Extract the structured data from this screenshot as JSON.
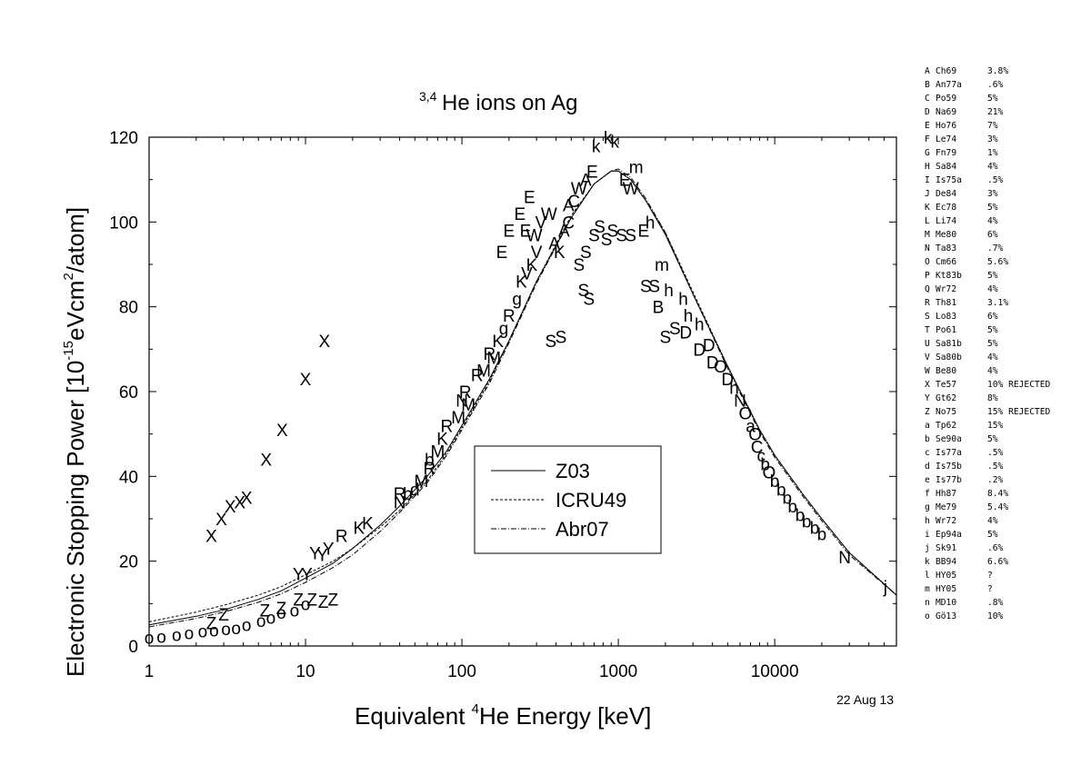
{
  "chart_data": {
    "type": "scatter",
    "title_sup": "3,4",
    "title": "He ions on Ag",
    "xlabel_pre": "Equivalent ",
    "xlabel_sup": "4",
    "xlabel_post": "He Energy [keV]",
    "ylabel_pre": "Electronic Stopping Power [10",
    "ylabel_sup1": "-15",
    "ylabel_mid": "eVcm",
    "ylabel_sup2": "2",
    "ylabel_post": "/atom]",
    "x_scale": "log",
    "xlim": [
      1,
      60000
    ],
    "ylim": [
      0,
      120
    ],
    "x_ticks": [
      1,
      10,
      100,
      1000,
      10000
    ],
    "x_tick_labels": [
      "1",
      "10",
      "100",
      "1000",
      "10000"
    ],
    "y_ticks": [
      0,
      20,
      40,
      60,
      80,
      100,
      120
    ],
    "y_tick_labels": [
      "0",
      "20",
      "40",
      "60",
      "80",
      "100",
      "120"
    ],
    "grid": false,
    "legend_position": "center",
    "legend": [
      {
        "label": "Z03",
        "style": "solid"
      },
      {
        "label": "ICRU49",
        "style": "dashed"
      },
      {
        "label": "Abr07",
        "style": "dashdot"
      }
    ],
    "curves": [
      {
        "name": "Z03",
        "style": "solid",
        "points": [
          [
            1,
            5
          ],
          [
            2,
            7
          ],
          [
            3,
            8.5
          ],
          [
            5,
            11
          ],
          [
            7,
            13
          ],
          [
            10,
            16
          ],
          [
            15,
            19.5
          ],
          [
            20,
            23
          ],
          [
            30,
            28.5
          ],
          [
            40,
            33
          ],
          [
            60,
            40
          ],
          [
            80,
            46
          ],
          [
            100,
            52
          ],
          [
            150,
            63
          ],
          [
            200,
            72
          ],
          [
            300,
            86
          ],
          [
            500,
            101
          ],
          [
            700,
            109
          ],
          [
            900,
            112
          ],
          [
            1000,
            112
          ],
          [
            1200,
            110
          ],
          [
            1500,
            105
          ],
          [
            2000,
            97
          ],
          [
            3000,
            83
          ],
          [
            5000,
            66
          ],
          [
            8000,
            51
          ],
          [
            10000,
            45
          ],
          [
            15000,
            36
          ],
          [
            20000,
            30
          ],
          [
            30000,
            22
          ],
          [
            60000,
            12
          ]
        ]
      },
      {
        "name": "ICRU49",
        "style": "dashed",
        "points": [
          [
            1,
            5.7
          ],
          [
            2,
            8
          ],
          [
            3,
            9.6
          ],
          [
            5,
            12
          ],
          [
            7,
            14
          ],
          [
            10,
            16.8
          ],
          [
            15,
            20
          ],
          [
            20,
            23
          ],
          [
            30,
            28
          ],
          [
            40,
            32
          ],
          [
            60,
            39
          ],
          [
            80,
            45.5
          ],
          [
            100,
            51.5
          ],
          [
            150,
            62.5
          ],
          [
            200,
            72
          ],
          [
            300,
            86
          ],
          [
            500,
            101.5
          ],
          [
            700,
            109
          ],
          [
            900,
            112
          ],
          [
            1000,
            112
          ],
          [
            1200,
            110
          ],
          [
            1500,
            105
          ],
          [
            2000,
            97.5
          ],
          [
            3000,
            83.5
          ],
          [
            5000,
            66
          ],
          [
            8000,
            51
          ],
          [
            10000,
            45
          ],
          [
            15000,
            36
          ],
          [
            20000,
            30
          ],
          [
            30000,
            22
          ],
          [
            60000,
            12
          ]
        ]
      },
      {
        "name": "Abr07",
        "style": "dashdot",
        "points": [
          [
            1,
            4.5
          ],
          [
            2,
            6.5
          ],
          [
            3,
            8
          ],
          [
            5,
            10.3
          ],
          [
            7,
            12.3
          ],
          [
            10,
            15
          ],
          [
            15,
            18.5
          ],
          [
            20,
            21.5
          ],
          [
            30,
            27
          ],
          [
            40,
            31.5
          ],
          [
            60,
            38.5
          ],
          [
            80,
            45
          ],
          [
            100,
            51
          ],
          [
            150,
            62
          ],
          [
            200,
            71.5
          ],
          [
            300,
            85.5
          ],
          [
            500,
            101
          ],
          [
            700,
            109
          ],
          [
            900,
            112
          ],
          [
            1000,
            112.5
          ],
          [
            1200,
            110.5
          ],
          [
            1500,
            105.5
          ],
          [
            2000,
            97.5
          ],
          [
            3000,
            83
          ],
          [
            5000,
            65.5
          ],
          [
            8000,
            50.5
          ],
          [
            10000,
            44.5
          ],
          [
            15000,
            35.5
          ],
          [
            20000,
            29.5
          ],
          [
            30000,
            21.5
          ],
          [
            60000,
            12
          ]
        ]
      }
    ],
    "points": [
      {
        "s": "X",
        "x": 2.5,
        "y": 26
      },
      {
        "s": "X",
        "x": 2.9,
        "y": 30
      },
      {
        "s": "X",
        "x": 3.3,
        "y": 33
      },
      {
        "s": "X",
        "x": 3.8,
        "y": 34
      },
      {
        "s": "X",
        "x": 4.2,
        "y": 35
      },
      {
        "s": "X",
        "x": 5.6,
        "y": 44
      },
      {
        "s": "X",
        "x": 7.1,
        "y": 51
      },
      {
        "s": "X",
        "x": 10,
        "y": 63
      },
      {
        "s": "X",
        "x": 13.2,
        "y": 72
      },
      {
        "s": "Y",
        "x": 9,
        "y": 17
      },
      {
        "s": "Y",
        "x": 10.2,
        "y": 17
      },
      {
        "s": "Y",
        "x": 11.5,
        "y": 22
      },
      {
        "s": "Y",
        "x": 12.8,
        "y": 21.5
      },
      {
        "s": "Y",
        "x": 14,
        "y": 23
      },
      {
        "s": "Z",
        "x": 2.5,
        "y": 5.5
      },
      {
        "s": "Z",
        "x": 3,
        "y": 7.5
      },
      {
        "s": "Z",
        "x": 5.5,
        "y": 8.5
      },
      {
        "s": "Z",
        "x": 7,
        "y": 9
      },
      {
        "s": "Z",
        "x": 9,
        "y": 11
      },
      {
        "s": "Z",
        "x": 11,
        "y": 11
      },
      {
        "s": "Z",
        "x": 13,
        "y": 10.5
      },
      {
        "s": "Z",
        "x": 15,
        "y": 11
      },
      {
        "s": "o",
        "x": 1,
        "y": 2
      },
      {
        "s": "o",
        "x": 1.2,
        "y": 2.3
      },
      {
        "s": "o",
        "x": 1.5,
        "y": 2.7
      },
      {
        "s": "o",
        "x": 1.8,
        "y": 3.1
      },
      {
        "s": "o",
        "x": 2.2,
        "y": 3.5
      },
      {
        "s": "o",
        "x": 2.6,
        "y": 3.8
      },
      {
        "s": "o",
        "x": 3.1,
        "y": 4.1
      },
      {
        "s": "o",
        "x": 3.6,
        "y": 4.3
      },
      {
        "s": "o",
        "x": 4.2,
        "y": 5
      },
      {
        "s": "o",
        "x": 5.2,
        "y": 6
      },
      {
        "s": "o",
        "x": 6,
        "y": 6.8
      },
      {
        "s": "o",
        "x": 7,
        "y": 7.9
      },
      {
        "s": "o",
        "x": 8.5,
        "y": 8.5
      },
      {
        "s": "o",
        "x": 10,
        "y": 10
      },
      {
        "s": "R",
        "x": 17,
        "y": 26
      },
      {
        "s": "K",
        "x": 22,
        "y": 28
      },
      {
        "s": "K",
        "x": 25,
        "y": 29
      },
      {
        "s": "R",
        "x": 40,
        "y": 36
      },
      {
        "s": "N",
        "x": 40,
        "y": 34
      },
      {
        "s": "b",
        "x": 45,
        "y": 36
      },
      {
        "s": "d",
        "x": 50,
        "y": 37
      },
      {
        "s": "M",
        "x": 55,
        "y": 39
      },
      {
        "s": "R",
        "x": 62,
        "y": 42
      },
      {
        "s": "b",
        "x": 62,
        "y": 44
      },
      {
        "s": "M",
        "x": 70,
        "y": 46
      },
      {
        "s": "K",
        "x": 75,
        "y": 49
      },
      {
        "s": "R",
        "x": 80,
        "y": 52
      },
      {
        "s": "M",
        "x": 95,
        "y": 54
      },
      {
        "s": "N",
        "x": 100,
        "y": 58
      },
      {
        "s": "R",
        "x": 105,
        "y": 60
      },
      {
        "s": "M",
        "x": 110,
        "y": 57
      },
      {
        "s": "R",
        "x": 125,
        "y": 64
      },
      {
        "s": "M",
        "x": 138,
        "y": 65
      },
      {
        "s": "R",
        "x": 150,
        "y": 69
      },
      {
        "s": "M",
        "x": 160,
        "y": 68
      },
      {
        "s": "K",
        "x": 170,
        "y": 72
      },
      {
        "s": "g",
        "x": 185,
        "y": 75
      },
      {
        "s": "R",
        "x": 200,
        "y": 78
      },
      {
        "s": "g",
        "x": 225,
        "y": 82
      },
      {
        "s": "K",
        "x": 240,
        "y": 86
      },
      {
        "s": "V",
        "x": 260,
        "y": 88
      },
      {
        "s": "K",
        "x": 280,
        "y": 90
      },
      {
        "s": "V",
        "x": 300,
        "y": 93
      },
      {
        "s": "E",
        "x": 180,
        "y": 93
      },
      {
        "s": "E",
        "x": 200,
        "y": 98
      },
      {
        "s": "E",
        "x": 235,
        "y": 102
      },
      {
        "s": "E",
        "x": 255,
        "y": 98
      },
      {
        "s": "E",
        "x": 270,
        "y": 106
      },
      {
        "s": "W",
        "x": 290,
        "y": 97
      },
      {
        "s": "V",
        "x": 320,
        "y": 100
      },
      {
        "s": "W",
        "x": 360,
        "y": 102
      },
      {
        "s": "A",
        "x": 390,
        "y": 95
      },
      {
        "s": "K",
        "x": 420,
        "y": 93
      },
      {
        "s": "A",
        "x": 450,
        "y": 98
      },
      {
        "s": "C",
        "x": 480,
        "y": 100
      },
      {
        "s": "S",
        "x": 370,
        "y": 72
      },
      {
        "s": "S",
        "x": 430,
        "y": 73
      },
      {
        "s": "S",
        "x": 600,
        "y": 84
      },
      {
        "s": "S",
        "x": 650,
        "y": 82
      },
      {
        "s": "S",
        "x": 560,
        "y": 90
      },
      {
        "s": "S",
        "x": 620,
        "y": 93
      },
      {
        "s": "A",
        "x": 480,
        "y": 104
      },
      {
        "s": "C",
        "x": 520,
        "y": 105
      },
      {
        "s": "W",
        "x": 560,
        "y": 108
      },
      {
        "s": "A",
        "x": 620,
        "y": 110
      },
      {
        "s": "E",
        "x": 680,
        "y": 112
      },
      {
        "s": "k",
        "x": 720,
        "y": 118
      },
      {
        "s": "S",
        "x": 700,
        "y": 97
      },
      {
        "s": "S",
        "x": 760,
        "y": 99
      },
      {
        "s": "S",
        "x": 840,
        "y": 96
      },
      {
        "s": "S",
        "x": 920,
        "y": 98
      },
      {
        "s": "k",
        "x": 860,
        "y": 120
      },
      {
        "s": "k",
        "x": 950,
        "y": 119
      },
      {
        "s": "m",
        "x": 1300,
        "y": 113
      },
      {
        "s": "E",
        "x": 1100,
        "y": 110
      },
      {
        "s": "W",
        "x": 1200,
        "y": 108
      },
      {
        "s": "S",
        "x": 1050,
        "y": 97
      },
      {
        "s": "S",
        "x": 1200,
        "y": 97
      },
      {
        "s": "E",
        "x": 1450,
        "y": 98
      },
      {
        "s": "h",
        "x": 1600,
        "y": 100
      },
      {
        "s": "S",
        "x": 1500,
        "y": 85
      },
      {
        "s": "S",
        "x": 1700,
        "y": 85
      },
      {
        "s": "m",
        "x": 1900,
        "y": 90
      },
      {
        "s": "h",
        "x": 2100,
        "y": 84
      },
      {
        "s": "B",
        "x": 1800,
        "y": 80
      },
      {
        "s": "h",
        "x": 2600,
        "y": 82
      },
      {
        "s": "h",
        "x": 2800,
        "y": 78
      },
      {
        "s": "S",
        "x": 2000,
        "y": 73
      },
      {
        "s": "S",
        "x": 2300,
        "y": 75
      },
      {
        "s": "D",
        "x": 2700,
        "y": 74
      },
      {
        "s": "h",
        "x": 3300,
        "y": 76
      },
      {
        "s": "D",
        "x": 3300,
        "y": 70
      },
      {
        "s": "D",
        "x": 3800,
        "y": 71
      },
      {
        "s": "D",
        "x": 4000,
        "y": 67
      },
      {
        "s": "O",
        "x": 4500,
        "y": 66
      },
      {
        "s": "D",
        "x": 5000,
        "y": 63
      },
      {
        "s": "h",
        "x": 5500,
        "y": 61
      },
      {
        "s": "N",
        "x": 6000,
        "y": 58
      },
      {
        "s": "O",
        "x": 6500,
        "y": 55
      },
      {
        "s": "a",
        "x": 7000,
        "y": 52
      },
      {
        "s": "O",
        "x": 7500,
        "y": 50
      },
      {
        "s": "C",
        "x": 7700,
        "y": 47
      },
      {
        "s": "c",
        "x": 8200,
        "y": 45
      },
      {
        "s": "b",
        "x": 8700,
        "y": 43
      },
      {
        "s": "O",
        "x": 9200,
        "y": 41
      },
      {
        "s": "b",
        "x": 10000,
        "y": 39
      },
      {
        "s": "b",
        "x": 11000,
        "y": 37
      },
      {
        "s": "b",
        "x": 12000,
        "y": 35
      },
      {
        "s": "b",
        "x": 13000,
        "y": 33
      },
      {
        "s": "b",
        "x": 14500,
        "y": 31
      },
      {
        "s": "b",
        "x": 16000,
        "y": 29.5
      },
      {
        "s": "b",
        "x": 18000,
        "y": 28
      },
      {
        "s": "b",
        "x": 20000,
        "y": 26.5
      },
      {
        "s": "N",
        "x": 28000,
        "y": 21
      },
      {
        "s": "j",
        "x": 51000,
        "y": 14
      }
    ]
  },
  "date_stamp": "22 Aug 13",
  "references": [
    {
      "code": "A",
      "name": "Ch69",
      "unc": "3.8%"
    },
    {
      "code": "B",
      "name": "An77a",
      "unc": ".6%"
    },
    {
      "code": "C",
      "name": "Po59",
      "unc": "5%"
    },
    {
      "code": "D",
      "name": "Na69",
      "unc": "21%"
    },
    {
      "code": "E",
      "name": "Ho76",
      "unc": "7%"
    },
    {
      "code": "F",
      "name": "Le74",
      "unc": "3%"
    },
    {
      "code": "G",
      "name": "Fn79",
      "unc": "1%"
    },
    {
      "code": "H",
      "name": "Sa84",
      "unc": "4%"
    },
    {
      "code": "I",
      "name": "Is75a",
      "unc": ".5%"
    },
    {
      "code": "J",
      "name": "De84",
      "unc": "3%"
    },
    {
      "code": "K",
      "name": "Ec78",
      "unc": "5%"
    },
    {
      "code": "L",
      "name": "Li74",
      "unc": "4%"
    },
    {
      "code": "M",
      "name": "Me80",
      "unc": "6%"
    },
    {
      "code": "N",
      "name": "Ta83",
      "unc": ".7%"
    },
    {
      "code": "O",
      "name": "Cm66",
      "unc": "5.6%"
    },
    {
      "code": "P",
      "name": "Kt83b",
      "unc": "5%"
    },
    {
      "code": "Q",
      "name": "Wr72",
      "unc": "4%"
    },
    {
      "code": "R",
      "name": "Th81",
      "unc": "3.1%"
    },
    {
      "code": "S",
      "name": "Lo83",
      "unc": "6%"
    },
    {
      "code": "T",
      "name": "Po61",
      "unc": "5%"
    },
    {
      "code": "U",
      "name": "Sa81b",
      "unc": "5%"
    },
    {
      "code": "V",
      "name": "Sa80b",
      "unc": "4%"
    },
    {
      "code": "W",
      "name": "Be80",
      "unc": "4%"
    },
    {
      "code": "X",
      "name": "Te57",
      "unc": "10% REJECTED"
    },
    {
      "code": "Y",
      "name": "Gt62",
      "unc": "8%"
    },
    {
      "code": "Z",
      "name": "No75",
      "unc": "15% REJECTED"
    },
    {
      "code": "a",
      "name": "Tp62",
      "unc": "15%"
    },
    {
      "code": "b",
      "name": "Se90a",
      "unc": "5%"
    },
    {
      "code": "c",
      "name": "Is77a",
      "unc": ".5%"
    },
    {
      "code": "d",
      "name": "Is75b",
      "unc": ".5%"
    },
    {
      "code": "e",
      "name": "Is77b",
      "unc": ".2%"
    },
    {
      "code": "f",
      "name": "Hh87",
      "unc": "8.4%"
    },
    {
      "code": "g",
      "name": "Me79",
      "unc": "5.4%"
    },
    {
      "code": "h",
      "name": "Wr72",
      "unc": "4%"
    },
    {
      "code": "i",
      "name": "Ep94a",
      "unc": "5%"
    },
    {
      "code": "j",
      "name": "Sk91",
      "unc": ".6%"
    },
    {
      "code": "k",
      "name": "BB94",
      "unc": "6.6%"
    },
    {
      "code": "l",
      "name": "HY05",
      "unc": "?"
    },
    {
      "code": "m",
      "name": "HY05",
      "unc": "?"
    },
    {
      "code": "n",
      "name": "MD10",
      "unc": ".8%"
    },
    {
      "code": "o",
      "name": "Gö13",
      "unc": "10%"
    }
  ]
}
